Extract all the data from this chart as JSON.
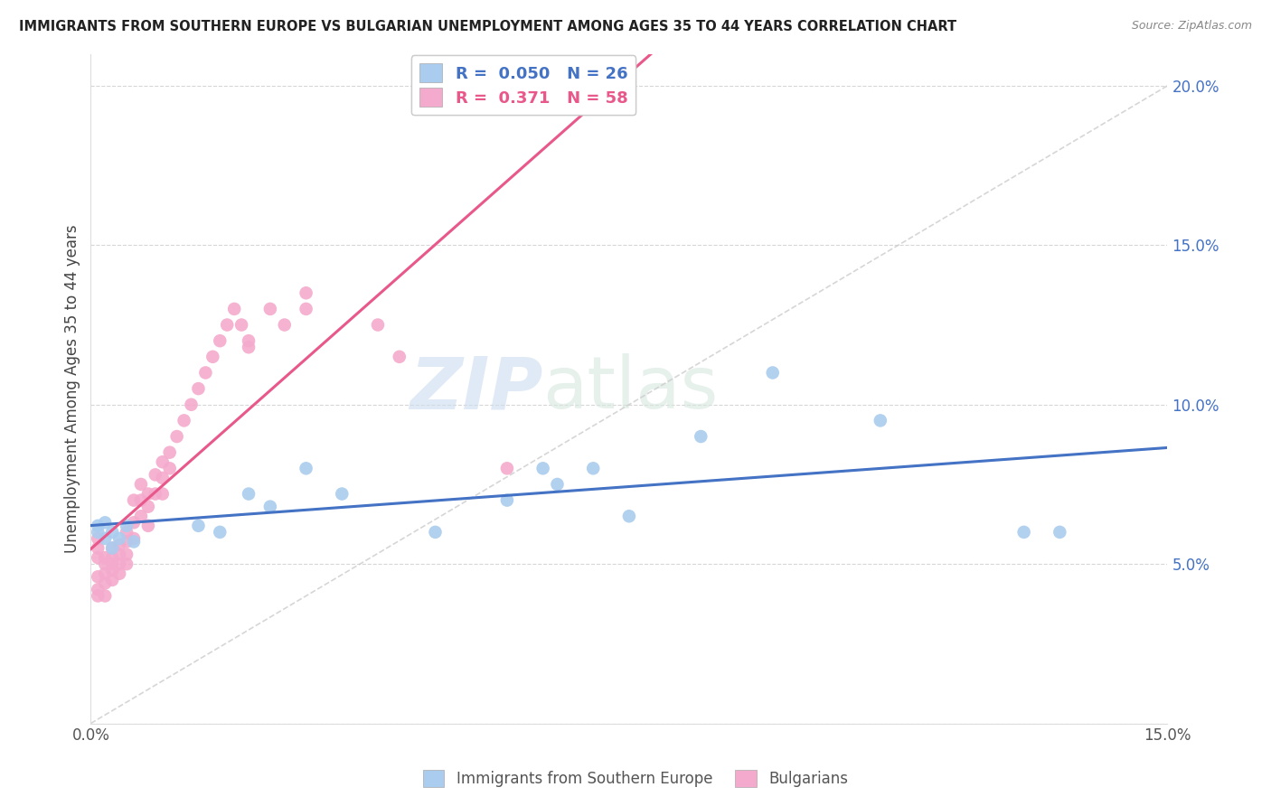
{
  "title": "IMMIGRANTS FROM SOUTHERN EUROPE VS BULGARIAN UNEMPLOYMENT AMONG AGES 35 TO 44 YEARS CORRELATION CHART",
  "source": "Source: ZipAtlas.com",
  "ylabel": "Unemployment Among Ages 35 to 44 years",
  "xlim": [
    0.0,
    0.15
  ],
  "ylim": [
    0.0,
    0.21
  ],
  "color_blue": "#aaccee",
  "color_pink": "#f4aacc",
  "color_blue_line": "#4472c4",
  "color_pink_line": "#e8588a",
  "color_gray_line": "#cccccc",
  "watermark_zip": "ZIP",
  "watermark_atlas": "atlas",
  "blue_scatter_x": [
    0.001,
    0.001,
    0.002,
    0.002,
    0.003,
    0.003,
    0.004,
    0.005,
    0.006,
    0.015,
    0.018,
    0.022,
    0.025,
    0.03,
    0.035,
    0.048,
    0.058,
    0.063,
    0.065,
    0.07,
    0.075,
    0.085,
    0.095,
    0.11,
    0.13,
    0.135
  ],
  "blue_scatter_y": [
    0.06,
    0.062,
    0.058,
    0.063,
    0.055,
    0.06,
    0.058,
    0.062,
    0.057,
    0.062,
    0.06,
    0.072,
    0.068,
    0.08,
    0.072,
    0.06,
    0.07,
    0.08,
    0.075,
    0.08,
    0.065,
    0.09,
    0.11,
    0.095,
    0.06,
    0.06
  ],
  "pink_scatter_x": [
    0.001,
    0.001,
    0.001,
    0.001,
    0.001,
    0.001,
    0.002,
    0.002,
    0.002,
    0.002,
    0.002,
    0.003,
    0.003,
    0.003,
    0.003,
    0.003,
    0.004,
    0.004,
    0.004,
    0.004,
    0.005,
    0.005,
    0.005,
    0.005,
    0.006,
    0.006,
    0.006,
    0.007,
    0.007,
    0.007,
    0.008,
    0.008,
    0.008,
    0.009,
    0.009,
    0.01,
    0.01,
    0.01,
    0.011,
    0.011,
    0.012,
    0.013,
    0.014,
    0.015,
    0.016,
    0.017,
    0.018,
    0.019,
    0.02,
    0.021,
    0.022,
    0.022,
    0.025,
    0.027,
    0.03,
    0.03,
    0.04,
    0.043,
    0.058
  ],
  "pink_scatter_y": [
    0.058,
    0.052,
    0.055,
    0.046,
    0.042,
    0.04,
    0.052,
    0.05,
    0.047,
    0.044,
    0.04,
    0.055,
    0.052,
    0.05,
    0.048,
    0.045,
    0.056,
    0.053,
    0.05,
    0.047,
    0.06,
    0.057,
    0.053,
    0.05,
    0.07,
    0.063,
    0.058,
    0.075,
    0.07,
    0.065,
    0.072,
    0.068,
    0.062,
    0.078,
    0.072,
    0.082,
    0.077,
    0.072,
    0.085,
    0.08,
    0.09,
    0.095,
    0.1,
    0.105,
    0.11,
    0.115,
    0.12,
    0.125,
    0.13,
    0.125,
    0.12,
    0.118,
    0.13,
    0.125,
    0.135,
    0.13,
    0.125,
    0.115,
    0.08
  ]
}
